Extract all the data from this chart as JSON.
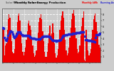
{
  "title": "Monthly Solar Energy Production",
  "subtitle": "Solar PV/Inverter Performance",
  "legend_bar": "Monthly kWh",
  "legend_avg": "Running Avg",
  "bar_color": "#ee0000",
  "avg_color": "#2222cc",
  "background_color": "#cccccc",
  "plot_bg": "#cccccc",
  "grid_color": "#ffffff",
  "tick_color": "#000000",
  "text_color": "#000000",
  "ylim": [
    0,
    9
  ],
  "yticks": [
    1,
    2,
    3,
    4,
    5,
    6,
    7,
    8
  ],
  "bar_values": [
    5.8,
    5.5,
    1.2,
    2.8,
    3.2,
    5.5,
    7.2,
    8.0,
    7.5,
    5.5,
    3.5,
    1.8,
    1.5,
    2.2,
    4.0,
    5.0,
    6.8,
    7.8,
    8.2,
    7.0,
    5.0,
    3.2,
    1.8,
    1.2,
    1.8,
    2.5,
    3.8,
    5.2,
    6.5,
    7.0,
    6.2,
    5.5,
    4.0,
    2.8,
    1.5,
    1.0,
    1.2,
    2.0,
    3.5,
    5.0,
    6.8,
    7.5,
    8.0,
    7.2,
    5.2,
    3.5,
    1.8,
    1.0,
    1.0,
    1.8,
    3.2,
    4.8,
    6.2,
    4.5,
    4.8,
    6.5,
    5.0,
    3.2,
    1.5,
    0.8,
    1.2,
    2.2,
    3.8,
    5.5,
    7.0,
    7.8,
    8.5,
    7.5,
    5.5,
    3.8,
    2.0,
    1.2,
    1.5,
    2.5,
    4.2,
    5.8,
    7.2,
    8.2,
    8.8,
    7.8,
    5.8,
    4.0,
    2.2,
    1.5,
    1.8,
    2.8,
    4.5,
    6.0,
    7.5,
    8.5,
    0.5,
    0.2,
    5.5,
    3.8,
    2.0,
    1.2,
    1.5,
    2.2,
    4.0,
    5.5,
    7.2,
    7.8,
    8.2,
    6.8,
    5.2,
    4.5,
    3.0,
    2.5
  ]
}
